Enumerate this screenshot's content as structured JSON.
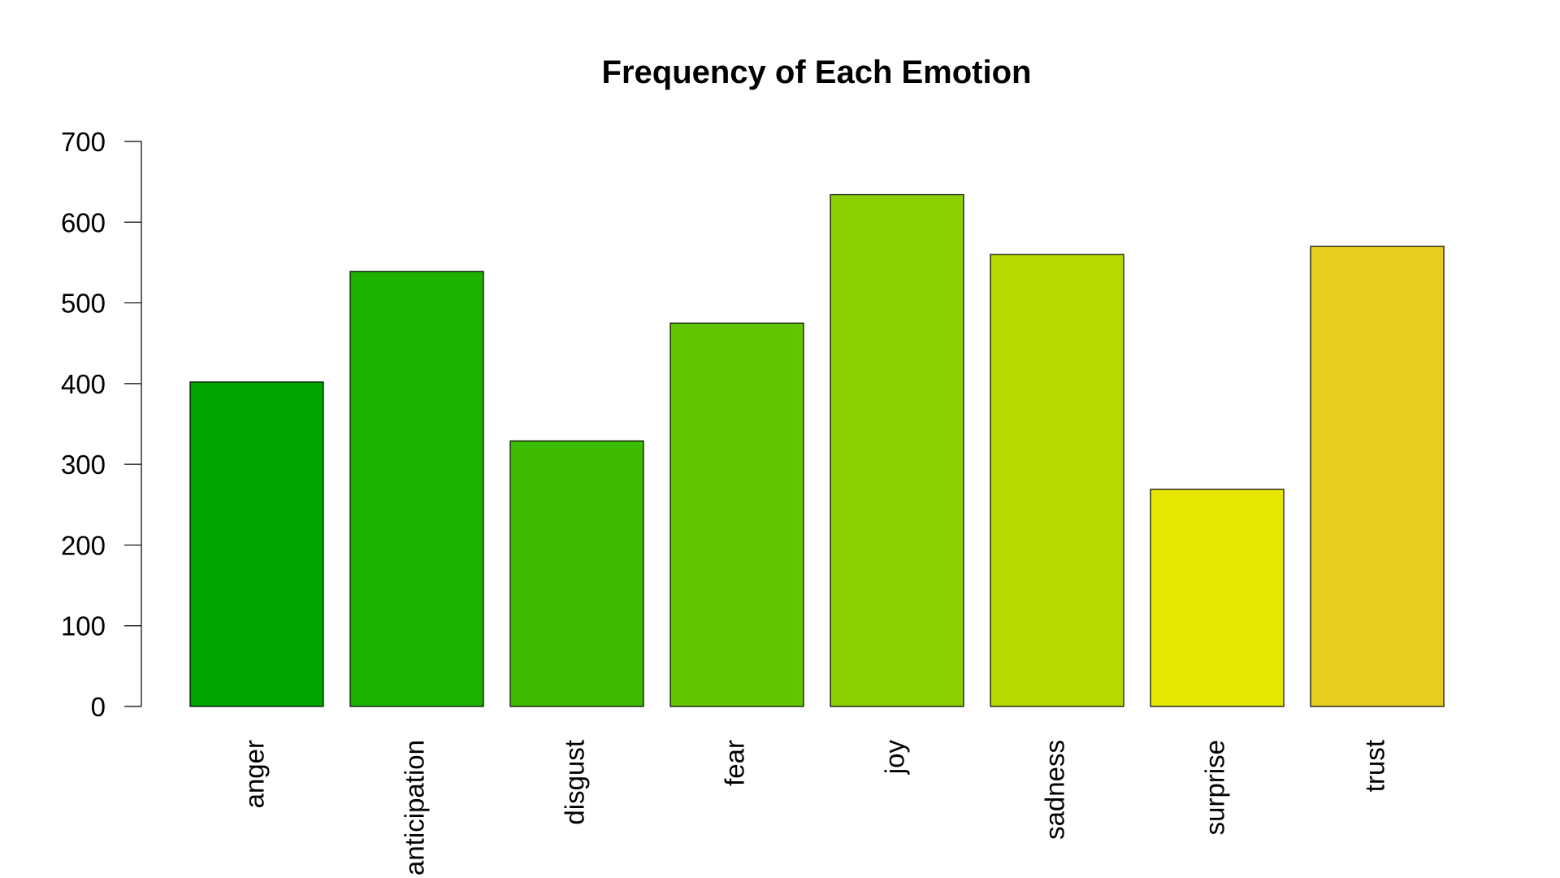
{
  "chart_data": {
    "type": "bar",
    "title": "Frequency of Each Emotion",
    "xlabel": "",
    "ylabel": "",
    "categories": [
      "anger",
      "anticipation",
      "disgust",
      "fear",
      "joy",
      "sadness",
      "surprise",
      "trust"
    ],
    "values": [
      402,
      539,
      329,
      475,
      634,
      560,
      269,
      570
    ],
    "colors": [
      "#00A600",
      "#1EB200",
      "#3EBD00",
      "#63C600",
      "#8BD000",
      "#B7DB00",
      "#E6E600",
      "#E6CF1D"
    ],
    "ylim": [
      0,
      700
    ],
    "yticks": [
      0,
      100,
      200,
      300,
      400,
      500,
      600,
      700
    ],
    "grid": false,
    "legend": "none",
    "x_tick_rotation": "vertical"
  }
}
